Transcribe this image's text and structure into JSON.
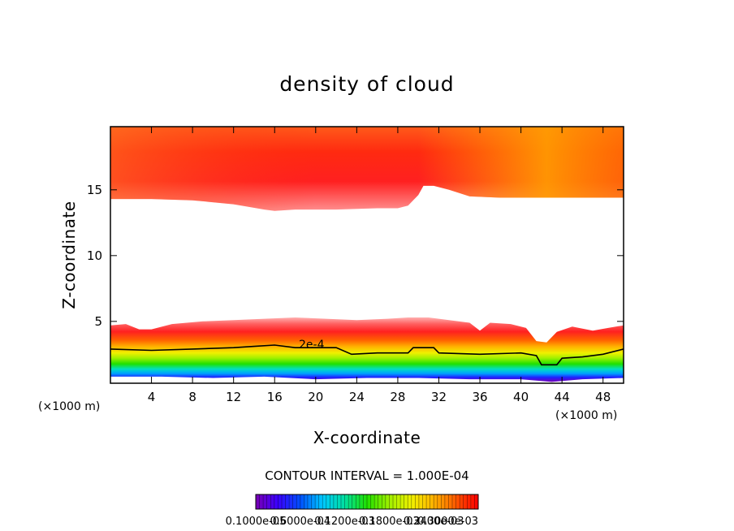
{
  "chart_data": {
    "type": "heatmap",
    "title": "density of cloud",
    "xlabel": "X-coordinate",
    "ylabel": "Z-coordinate",
    "x_unit": "(×1000 m)",
    "xlim": [
      0,
      50
    ],
    "ylim": [
      0.3,
      19.8
    ],
    "x_ticks": [
      4,
      8,
      12,
      16,
      20,
      24,
      28,
      32,
      36,
      40,
      44,
      48
    ],
    "y_ticks": [
      5,
      10,
      15
    ],
    "contour_interval_text": "CONTOUR INTERVAL = 1.000E-04",
    "contour_annotation": "2e-4",
    "colorbar_labels": [
      "0.1000e-05",
      "0.6000e-04",
      "0.1200e-03",
      "0.1800e-03",
      "0.2400e-03",
      "0.3000e-03"
    ],
    "colorscale": [
      "#7a00b4",
      "#3a00ff",
      "#0050ff",
      "#00c8ff",
      "#00e0a0",
      "#20e000",
      "#a0f000",
      "#f0f000",
      "#ffc000",
      "#ff8000",
      "#ff3000",
      "#ff0000"
    ],
    "regions": {
      "upper_cloud": {
        "bottom_boundary": [
          [
            0,
            14.3
          ],
          [
            4,
            14.3
          ],
          [
            8,
            14.2
          ],
          [
            12,
            13.9
          ],
          [
            15,
            13.5
          ],
          [
            16,
            13.4
          ],
          [
            18,
            13.5
          ],
          [
            22,
            13.5
          ],
          [
            26,
            13.6
          ],
          [
            28,
            13.6
          ],
          [
            29,
            13.8
          ],
          [
            30,
            14.6
          ],
          [
            30.5,
            15.3
          ],
          [
            31.5,
            15.3
          ],
          [
            33,
            15.0
          ],
          [
            35,
            14.5
          ],
          [
            38,
            14.4
          ],
          [
            42,
            14.4
          ],
          [
            46,
            14.4
          ],
          [
            50,
            14.4
          ]
        ],
        "top": 19.8
      },
      "lower_cloud": {
        "top_boundary": [
          [
            0,
            4.7
          ],
          [
            1.5,
            4.8
          ],
          [
            2.8,
            4.4
          ],
          [
            4,
            4.4
          ],
          [
            6,
            4.8
          ],
          [
            9,
            5.0
          ],
          [
            12,
            5.1
          ],
          [
            15,
            5.2
          ],
          [
            18,
            5.3
          ],
          [
            21,
            5.2
          ],
          [
            24,
            5.1
          ],
          [
            27,
            5.2
          ],
          [
            29,
            5.3
          ],
          [
            31,
            5.3
          ],
          [
            33,
            5.1
          ],
          [
            35,
            4.9
          ],
          [
            36,
            4.3
          ],
          [
            37,
            4.9
          ],
          [
            39,
            4.8
          ],
          [
            40.5,
            4.5
          ],
          [
            41.5,
            3.5
          ],
          [
            42.5,
            3.4
          ],
          [
            43.5,
            4.2
          ],
          [
            45,
            4.6
          ],
          [
            47,
            4.3
          ],
          [
            48.5,
            4.5
          ],
          [
            50,
            4.7
          ]
        ],
        "bottom_boundary": [
          [
            0,
            0.8
          ],
          [
            5,
            0.8
          ],
          [
            10,
            0.7
          ],
          [
            15,
            0.8
          ],
          [
            20,
            0.6
          ],
          [
            25,
            0.7
          ],
          [
            30,
            0.7
          ],
          [
            35,
            0.6
          ],
          [
            40,
            0.6
          ],
          [
            43,
            0.4
          ],
          [
            46,
            0.6
          ],
          [
            50,
            0.7
          ]
        ],
        "contour_2e-4": [
          [
            0,
            2.9
          ],
          [
            4,
            2.8
          ],
          [
            8,
            2.9
          ],
          [
            12,
            3.0
          ],
          [
            14,
            3.1
          ],
          [
            16,
            3.2
          ],
          [
            18,
            3.0
          ],
          [
            20,
            3.0
          ],
          [
            22,
            3.0
          ],
          [
            23.5,
            2.5
          ],
          [
            26,
            2.6
          ],
          [
            29,
            2.6
          ],
          [
            29.5,
            3.0
          ],
          [
            31.5,
            3.0
          ],
          [
            32,
            2.6
          ],
          [
            36,
            2.5
          ],
          [
            40,
            2.6
          ],
          [
            41.5,
            2.4
          ],
          [
            42,
            1.7
          ],
          [
            43.5,
            1.7
          ],
          [
            44,
            2.2
          ],
          [
            46,
            2.3
          ],
          [
            48,
            2.5
          ],
          [
            50,
            2.9
          ]
        ]
      }
    }
  }
}
